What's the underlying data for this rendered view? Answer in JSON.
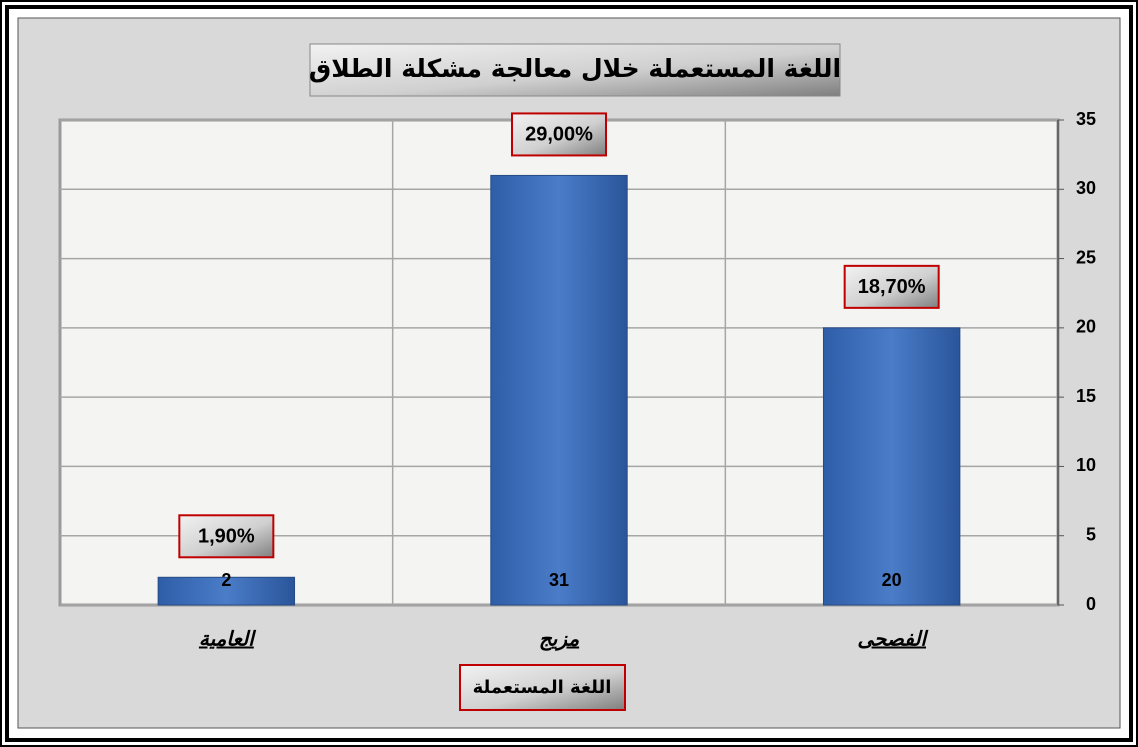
{
  "chart_data": {
    "type": "bar",
    "title": "اللغة المستعملة خلال معالجة مشكلة الطلاق",
    "x_label": "اللغة المستعملة",
    "categories": [
      "العامية",
      "مزيج",
      "الفصحى"
    ],
    "values": [
      2,
      31,
      20
    ],
    "color": "#3a6bb8",
    "annotations": [
      "1,90%",
      "29,00%",
      "18,70%"
    ],
    "ylim": [
      0,
      35
    ],
    "yticks": [
      0,
      5,
      10,
      15,
      20,
      25,
      30,
      35
    ],
    "grid": true,
    "y_axis_side": "right"
  }
}
